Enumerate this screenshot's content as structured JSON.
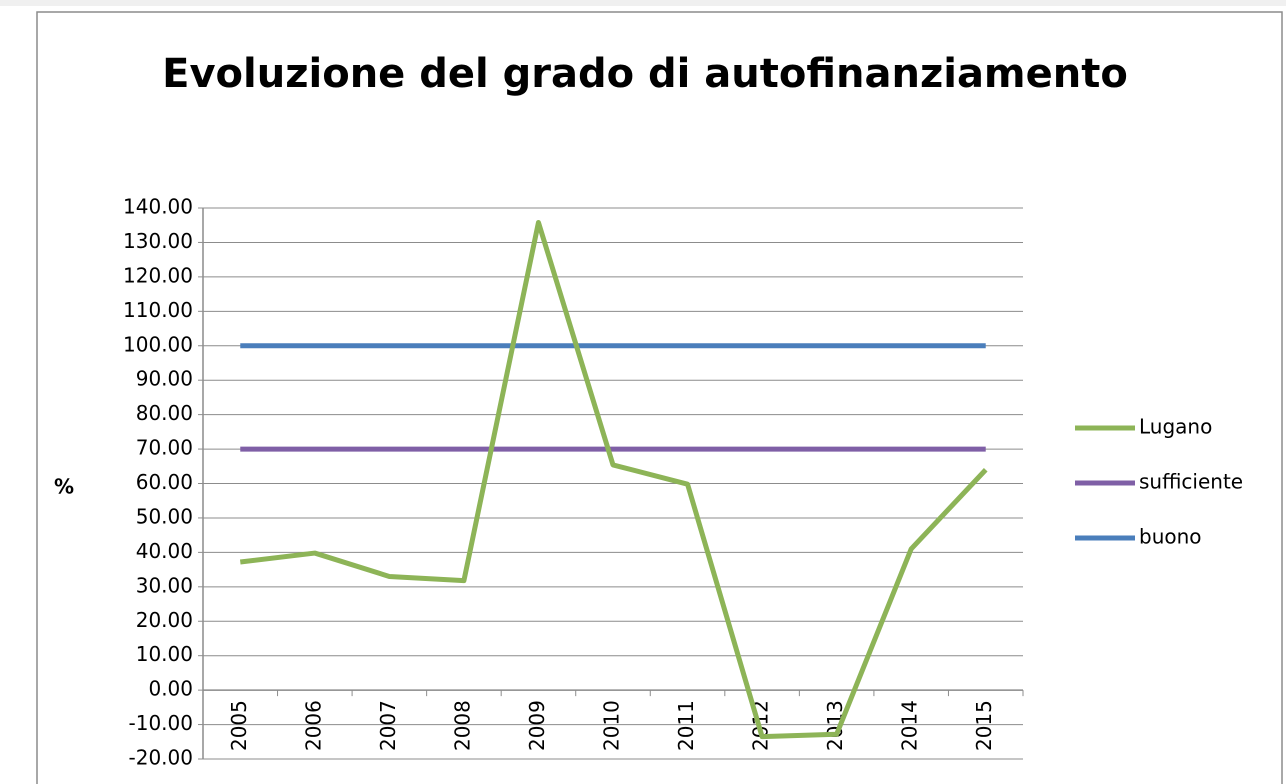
{
  "chart_data": {
    "type": "line",
    "title": "Evoluzione del grado di autofinanziamento",
    "y_label": "%",
    "categories": [
      "2005",
      "2006",
      "2007",
      "2008",
      "2009",
      "2010",
      "2011",
      "2012",
      "2013",
      "2014",
      "2015"
    ],
    "series": [
      {
        "name": "Lugano",
        "color": "#8db457",
        "values": [
          37.2,
          39.8,
          33,
          31.8,
          135.8,
          65.4,
          59.8,
          -13.5,
          -12.8,
          41,
          64
        ]
      },
      {
        "name": "sufficiente",
        "color": "#7f5fa6",
        "values": [
          70,
          70,
          70,
          70,
          70,
          70,
          70,
          70,
          70,
          70,
          70
        ]
      },
      {
        "name": "buono",
        "color": "#4a7ebb",
        "values": [
          100,
          100,
          100,
          100,
          100,
          100,
          100,
          100,
          100,
          100,
          100
        ]
      }
    ],
    "ylim": [
      -20,
      140
    ],
    "yticks": [
      {
        "value": -20,
        "label": "-20.00"
      },
      {
        "value": -10,
        "label": "-10.00"
      },
      {
        "value": 0,
        "label": "0.00"
      },
      {
        "value": 10,
        "label": "10.00"
      },
      {
        "value": 20,
        "label": "20.00"
      },
      {
        "value": 30,
        "label": "30.00"
      },
      {
        "value": 40,
        "label": "40.00"
      },
      {
        "value": 50,
        "label": "50.00"
      },
      {
        "value": 60,
        "label": "60.00"
      },
      {
        "value": 70,
        "label": "70.00"
      },
      {
        "value": 80,
        "label": "80.00"
      },
      {
        "value": 90,
        "label": "90.00"
      },
      {
        "value": 100,
        "label": "100.00"
      },
      {
        "value": 110,
        "label": "110.00"
      },
      {
        "value": 120,
        "label": "120.00"
      },
      {
        "value": 130,
        "label": "130.00"
      },
      {
        "value": 140,
        "label": "140.00"
      }
    ],
    "negative_tick_color": "#ff0000",
    "grid": true,
    "legend": "right"
  }
}
